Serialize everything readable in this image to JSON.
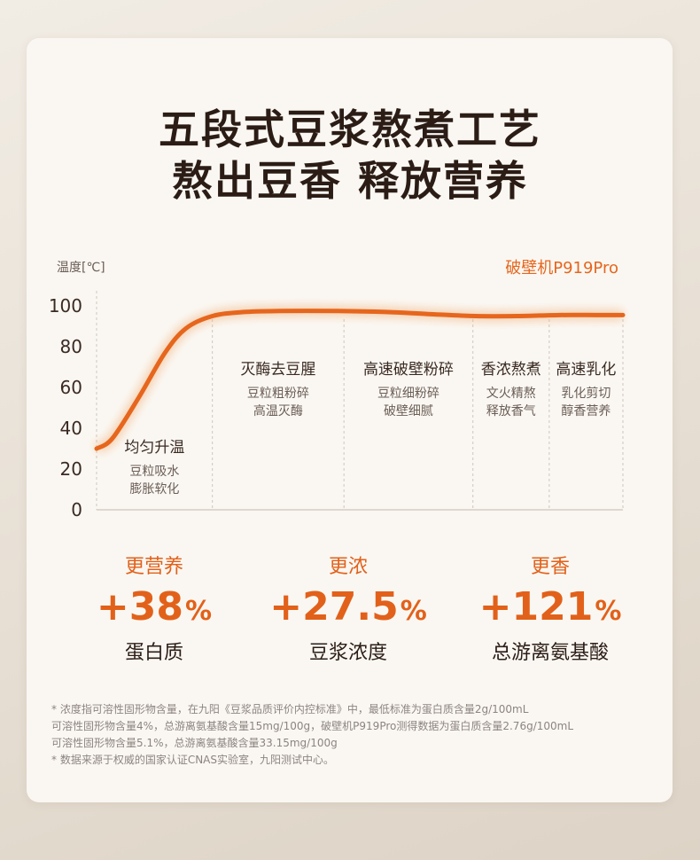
{
  "title": {
    "line1": "五段式豆浆熬煮工艺",
    "line2": "熬出豆香 释放营养"
  },
  "chart_data": {
    "type": "line",
    "ylabel": "温度[℃]",
    "series_label": "破壁机P919Pro",
    "yticks": [
      0,
      20,
      40,
      60,
      80,
      100
    ],
    "ylim": [
      0,
      100
    ],
    "xlim": [
      0,
      100
    ],
    "x": [
      0,
      3,
      8,
      13,
      17,
      22,
      28,
      35,
      45,
      55,
      63,
      72,
      80,
      88,
      95,
      100
    ],
    "y": [
      30,
      35,
      55,
      77,
      89,
      95,
      97,
      97.5,
      97.5,
      97,
      96,
      95,
      95,
      95.5,
      95.5,
      95.5
    ],
    "boundaries": [
      22,
      47,
      71.5,
      86,
      100
    ],
    "stages": [
      {
        "name": "均匀升温",
        "desc": [
          "豆粒吸水",
          "膨胀软化"
        ]
      },
      {
        "name": "灭酶去豆腥",
        "desc": [
          "豆粒粗粉碎",
          "高温灭酶"
        ]
      },
      {
        "name": "高速破壁粉碎",
        "desc": [
          "豆粒细粉碎",
          "破壁细腻"
        ]
      },
      {
        "name": "香浓熬煮",
        "desc": [
          "文火精熬",
          "释放香气"
        ]
      },
      {
        "name": "高速乳化",
        "desc": [
          "乳化剪切",
          "醇香营养"
        ]
      }
    ],
    "colors": {
      "line": "#e6661d",
      "glow": "#f2b07a",
      "text": "#3a2a22",
      "muted": "#6b5d56",
      "grid": "#cfc6bd"
    }
  },
  "stats": [
    {
      "label": "更营养",
      "value": "+38",
      "unit": "%",
      "desc": "蛋白质"
    },
    {
      "label": "更浓",
      "value": "+27.5",
      "unit": "%",
      "desc": "豆浆浓度"
    },
    {
      "label": "更香",
      "value": "+121",
      "unit": "%",
      "desc": "总游离氨基酸"
    }
  ],
  "footnotes": {
    "line1": "* 浓度指可溶性固形物含量，在九阳《豆浆品质评价内控标准》中，最低标准为蛋白质含量2g/100mL",
    "line2": "可溶性固形物含量4%，总游离氨基酸含量15mg/100g，破壁机P919Pro测得数据为蛋白质含量2.76g/100mL",
    "line3": "可溶性固形物含量5.1%，总游离氨基酸含量33.15mg/100g",
    "line4": "* 数据来源于权威的国家认证CNAS实验室，九阳测试中心。"
  }
}
